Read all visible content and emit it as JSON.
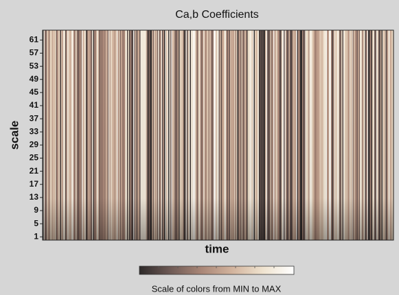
{
  "chart_data": {
    "type": "scalogram",
    "title": "Ca,b Coefficients",
    "ylabel": "scale",
    "xlabel": "time",
    "ylim": [
      0,
      64
    ],
    "yticks": [
      1,
      5,
      9,
      13,
      17,
      21,
      25,
      29,
      33,
      37,
      41,
      45,
      49,
      53,
      57,
      61
    ],
    "colormap": [
      "#2e2a2a",
      "#6e5a55",
      "#a98677",
      "#d2b39d",
      "#efe3cf",
      "#ffffff"
    ],
    "colorbar_label": "Scale of colors from MIN to MAX"
  }
}
